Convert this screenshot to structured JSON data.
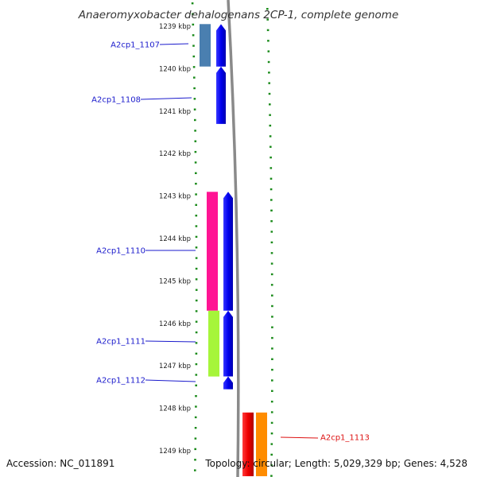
{
  "header": {
    "title": "Anaeromyxobacter dehalogenans 2CP-1, complete genome"
  },
  "footer": {
    "accession": "Accession: NC_011891",
    "summary": "Topology: circular; Length: 5,029,329 bp; Genes: 4,528"
  },
  "axis": {
    "unit": "kbp",
    "ticks": [
      "1239 kbp",
      "1240 kbp",
      "1241 kbp",
      "1242 kbp",
      "1243 kbp",
      "1244 kbp",
      "1245 kbp",
      "1246 kbp",
      "1247 kbp",
      "1248 kbp",
      "1249 kbp"
    ],
    "range_kbp": [
      1238.95,
      1249.6
    ]
  },
  "genes": [
    {
      "label": "A2cp1_1107",
      "strand": "-",
      "start_kbp": 1238.95,
      "end_kbp": 1239.95,
      "cog_color": "#4a7fb0",
      "label_color": "#1a1acc"
    },
    {
      "label": "A2cp1_1108",
      "strand": "-",
      "start_kbp": 1239.95,
      "end_kbp": 1241.3,
      "cog_color": null,
      "label_color": "#1a1acc"
    },
    {
      "label": "A2cp1_1110",
      "strand": "-",
      "start_kbp": 1242.9,
      "end_kbp": 1245.7,
      "cog_color": "#ff1493",
      "label_color": "#1a1acc"
    },
    {
      "label": "A2cp1_1111",
      "strand": "-",
      "start_kbp": 1245.7,
      "end_kbp": 1247.25,
      "cog_color": "#a6f53a",
      "label_color": "#1a1acc"
    },
    {
      "label": "A2cp1_1112",
      "strand": "-",
      "start_kbp": 1247.25,
      "end_kbp": 1247.55,
      "cog_color": null,
      "label_color": "#1a1acc"
    },
    {
      "label": "A2cp1_1113",
      "strand": "+",
      "start_kbp": 1248.1,
      "end_kbp": 1249.6,
      "cog_color": "#ff8c00",
      "label_color": "#dd1111"
    }
  ],
  "colors": {
    "minus_strand": "#0000ee",
    "plus_strand": "#ee0000",
    "backbone": "#888888",
    "tick_dots": "#1a8a1a"
  }
}
